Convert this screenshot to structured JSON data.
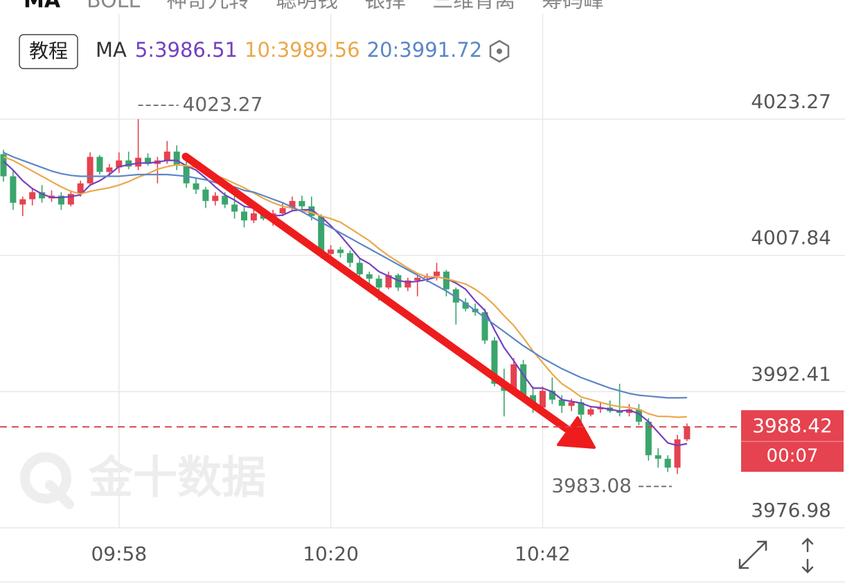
{
  "toolbar": {
    "tabs": [
      "MA",
      "BOLL",
      "神奇九转",
      "聪明钱",
      "银择",
      "三维背离",
      "筹码峰"
    ],
    "tutorial": "教程"
  },
  "chart_data": {
    "type": "candlestick",
    "indicator": "MA",
    "categories": [
      null,
      null,
      null,
      null,
      null,
      null,
      null,
      null,
      null,
      null,
      null,
      null,
      "09:58",
      null,
      null,
      null,
      null,
      null,
      null,
      null,
      null,
      null,
      null,
      null,
      null,
      null,
      null,
      null,
      null,
      null,
      null,
      null,
      null,
      null,
      "10:20",
      null,
      null,
      null,
      null,
      null,
      null,
      null,
      null,
      null,
      null,
      null,
      null,
      null,
      null,
      null,
      null,
      null,
      null,
      null,
      null,
      null,
      "10:42",
      null,
      null,
      null,
      null,
      null,
      null,
      null,
      null,
      null,
      null,
      null,
      null,
      null,
      null,
      null
    ],
    "open": [
      4019.3,
      4016.8,
      4013.6,
      4014.2,
      4015.0,
      4014.3,
      4014.6,
      4013.6,
      4014.8,
      4016.0,
      4019.0,
      4017.3,
      4017.8,
      4018.6,
      4017.9,
      4018.9,
      4018.2,
      4018.6,
      4019.6,
      4018.0,
      4016.0,
      4015.3,
      4014.0,
      4014.6,
      4013.6,
      4012.8,
      4011.8,
      4012.6,
      4012.0,
      4012.6,
      4013.2,
      4014.0,
      4013.4,
      4012.3,
      4008.0,
      4008.5,
      4008.1,
      4007.0,
      4005.7,
      4005.2,
      4004.2,
      4005.6,
      4004.2,
      4005.0,
      4005.3,
      4005.5,
      4006.0,
      4004.0,
      4002.5,
      4001.8,
      4001.4,
      3998.2,
      3993.3,
      3992.5,
      3995.5,
      3992.0,
      3990.6,
      3992.5,
      3991.5,
      3990.8,
      3991.2,
      3989.8,
      3990.4,
      3990.6,
      3990.2,
      3990.0,
      3990.4,
      3989.0,
      3985.2,
      3984.8,
      3983.8,
      3987.0
    ],
    "high": [
      4019.8,
      4017.5,
      4014.5,
      4015.5,
      4015.8,
      4015.2,
      4015.0,
      4015.2,
      4016.3,
      4019.5,
      4019.2,
      4018.2,
      4019.5,
      4019.6,
      4023.27,
      4019.4,
      4019.0,
      4020.8,
      4020.3,
      4018.6,
      4016.6,
      4015.6,
      4015.0,
      4015.0,
      4014.8,
      4013.4,
      4013.0,
      4013.0,
      4013.0,
      4013.8,
      4014.5,
      4014.6,
      4014.5,
      4012.5,
      4009.0,
      4008.8,
      4008.4,
      4007.5,
      4006.0,
      4005.6,
      4006.0,
      4005.8,
      4005.3,
      4005.6,
      4005.8,
      4007.0,
      4006.2,
      4004.2,
      4003.0,
      4002.4,
      4001.8,
      3998.6,
      3995.0,
      3996.2,
      3996.0,
      3993.0,
      3993.0,
      3994.0,
      3992.0,
      3991.6,
      3991.6,
      3990.6,
      3991.2,
      3991.4,
      3993.3,
      3991.0,
      3991.0,
      3989.4,
      3986.0,
      3985.2,
      3987.5,
      3988.8
    ],
    "low": [
      4016.2,
      4013.0,
      4012.3,
      4013.5,
      4013.8,
      4013.9,
      4013.0,
      4013.4,
      4014.5,
      4015.8,
      4017.0,
      4016.8,
      4017.2,
      4017.6,
      4017.5,
      4018.0,
      4016.0,
      4018.2,
      4017.5,
      4015.5,
      4014.8,
      4013.2,
      4013.5,
      4013.2,
      4012.0,
      4011.0,
      4011.5,
      4011.8,
      4011.2,
      4012.3,
      4012.8,
      4013.0,
      4011.8,
      4007.5,
      4007.5,
      4007.6,
      4006.5,
      4005.2,
      4004.6,
      4002.7,
      4004.0,
      4003.8,
      4003.8,
      4003.2,
      4004.8,
      4005.0,
      4003.2,
      4000.0,
      4001.5,
      4001.0,
      3997.8,
      3993.0,
      3989.6,
      3992.0,
      3991.5,
      3990.0,
      3990.2,
      3991.0,
      3990.0,
      3990.2,
      3989.0,
      3989.6,
      3990.0,
      3990.0,
      3989.6,
      3989.6,
      3988.6,
      3984.6,
      3983.8,
      3983.3,
      3983.08,
      3986.8
    ],
    "close": [
      4016.8,
      4013.8,
      4014.2,
      4015.0,
      4014.3,
      4014.6,
      4013.6,
      4014.8,
      4016.0,
      4019.0,
      4017.3,
      4017.8,
      4018.6,
      4017.9,
      4018.9,
      4018.2,
      4018.6,
      4019.6,
      4018.0,
      4016.0,
      4015.3,
      4014.0,
      4014.6,
      4013.6,
      4012.8,
      4011.8,
      4012.6,
      4012.0,
      4012.6,
      4013.2,
      4014.0,
      4013.4,
      4012.3,
      4008.0,
      4008.5,
      4008.1,
      4007.0,
      4005.7,
      4005.2,
      4004.2,
      4005.6,
      4004.2,
      4005.0,
      4005.3,
      4005.5,
      4006.0,
      4004.0,
      4002.5,
      4001.8,
      4001.4,
      3998.2,
      3993.3,
      3992.5,
      3995.5,
      3992.0,
      3990.6,
      3992.5,
      3991.5,
      3990.8,
      3991.2,
      3989.8,
      3990.4,
      3990.6,
      3990.2,
      3990.0,
      3990.4,
      3989.0,
      3985.2,
      3984.8,
      3983.8,
      3987.0,
      3988.42
    ],
    "up_color": "#e5424f",
    "down_color": "#3aa56c",
    "series": [
      {
        "name": "5:3986.51",
        "color": "#7440c0",
        "values": [
          4018.5,
          4017.5,
          4016.3,
          4015.4,
          4014.8,
          4014.4,
          4014.4,
          4014.5,
          4014.7,
          4015.8,
          4016.3,
          4017.0,
          4017.9,
          4018.1,
          4018.3,
          4018.3,
          4018.4,
          4018.6,
          4018.6,
          4018.0,
          4017.5,
          4016.6,
          4015.6,
          4014.7,
          4014.1,
          4013.4,
          4013.2,
          4012.6,
          4012.3,
          4012.4,
          4012.9,
          4013.0,
          4013.0,
          4012.2,
          4011.2,
          4010.1,
          4008.8,
          4007.5,
          4006.9,
          4006.0,
          4005.5,
          4005.0,
          4004.8,
          4004.9,
          4005.1,
          4005.4,
          4005.2,
          4004.7,
          4004.0,
          4002.7,
          4001.6,
          3999.4,
          3997.4,
          3995.9,
          3994.3,
          3992.8,
          3992.8,
          3992.4,
          3991.5,
          3991.3,
          3991.1,
          3990.7,
          3990.6,
          3990.4,
          3990.2,
          3990.3,
          3989.9,
          3989.0,
          3987.8,
          3986.6,
          3986.3,
          3986.51
        ]
      },
      {
        "name": "10:3989.56",
        "color": "#eaa84a",
        "values": [
          4019.0,
          4018.6,
          4018.0,
          4017.4,
          4016.8,
          4016.2,
          4015.6,
          4015.1,
          4014.8,
          4015.1,
          4015.3,
          4015.5,
          4015.8,
          4016.2,
          4016.7,
          4017.1,
          4017.6,
          4017.9,
          4018.1,
          4018.0,
          4017.8,
          4017.3,
          4016.9,
          4016.5,
          4016.0,
          4015.5,
          4014.9,
          4014.3,
          4013.8,
          4013.4,
          4013.2,
          4012.9,
          4012.7,
          4012.3,
          4012.0,
          4011.6,
          4010.9,
          4010.2,
          4009.5,
          4008.6,
          4007.8,
          4007.1,
          4006.4,
          4005.8,
          4005.4,
          4005.4,
          4005.2,
          4004.9,
          4004.6,
          4004.0,
          4003.2,
          4002.2,
          4001.0,
          3999.9,
          3998.5,
          3997.0,
          3995.7,
          3994.4,
          3993.3,
          3992.6,
          3991.8,
          3991.5,
          3991.2,
          3990.9,
          3990.7,
          3990.6,
          3990.4,
          3989.9,
          3989.6,
          3989.6,
          3989.5,
          3989.56
        ]
      },
      {
        "name": "20:3991.72",
        "color": "#5b86c6",
        "values": [
          4019.5,
          4019.0,
          4018.6,
          4018.2,
          4017.8,
          4017.4,
          4017.1,
          4016.9,
          4016.8,
          4016.8,
          4016.8,
          4016.8,
          4016.8,
          4016.9,
          4017.0,
          4017.0,
          4017.0,
          4017.0,
          4016.9,
          4016.8,
          4016.6,
          4016.4,
          4016.1,
          4015.8,
          4015.6,
          4015.2,
          4015.0,
          4014.6,
          4014.2,
          4013.8,
          4013.3,
          4012.8,
          4012.2,
          4011.6,
          4011.0,
          4010.4,
          4009.8,
          4009.2,
          4008.6,
          4008.0,
          4007.4,
          4006.8,
          4006.2,
          4005.6,
          4005.0,
          4004.4,
          4003.8,
          4003.1,
          4002.4,
          4001.6,
          4000.8,
          4000.0,
          3999.2,
          3998.4,
          3997.6,
          3996.9,
          3996.2,
          3995.6,
          3995.0,
          3994.5,
          3994.0,
          3993.6,
          3993.2,
          3992.8,
          3992.5,
          3992.2,
          3992.0,
          3991.9,
          3991.8,
          3991.7,
          3991.7,
          3991.72
        ]
      }
    ],
    "ylim": [
      3976.98,
      4035.2
    ],
    "yticks": [
      3976.98,
      3992.41,
      4007.84,
      4023.27
    ],
    "grid": true,
    "last_price": 3988.42,
    "countdown": "00:07",
    "watermark": "金十数据"
  }
}
